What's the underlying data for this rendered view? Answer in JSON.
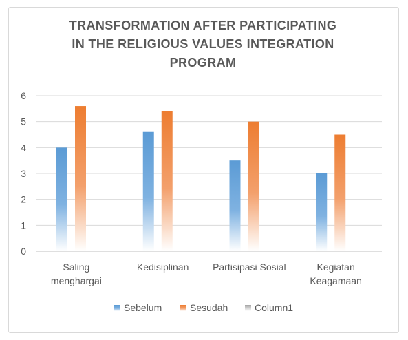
{
  "chart_data": {
    "type": "bar",
    "title_lines": [
      "TRANSFORMATION AFTER PARTICIPATING",
      "IN THE RELIGIOUS VALUES INTEGRATION",
      "PROGRAM"
    ],
    "categories": [
      [
        "Saling",
        "menghargai"
      ],
      [
        "Kedisiplinan"
      ],
      [
        "Partisipasi Sosial"
      ],
      [
        "Kegiatan",
        "Keagamaan"
      ]
    ],
    "series": [
      {
        "name": "Sebelum",
        "values": [
          4,
          4.6,
          3.5,
          3
        ],
        "color": "#5b9bd5"
      },
      {
        "name": "Sesudah",
        "values": [
          5.6,
          5.4,
          5,
          4.5
        ],
        "color": "#ed7d31"
      },
      {
        "name": "Column1",
        "values": [
          null,
          null,
          null,
          null
        ],
        "color": "#a5a5a5"
      }
    ],
    "yticks": [
      "0",
      "1",
      "2",
      "3",
      "4",
      "5",
      "6"
    ],
    "ylim": [
      0,
      6
    ],
    "grid": true,
    "legend_position": "bottom"
  }
}
